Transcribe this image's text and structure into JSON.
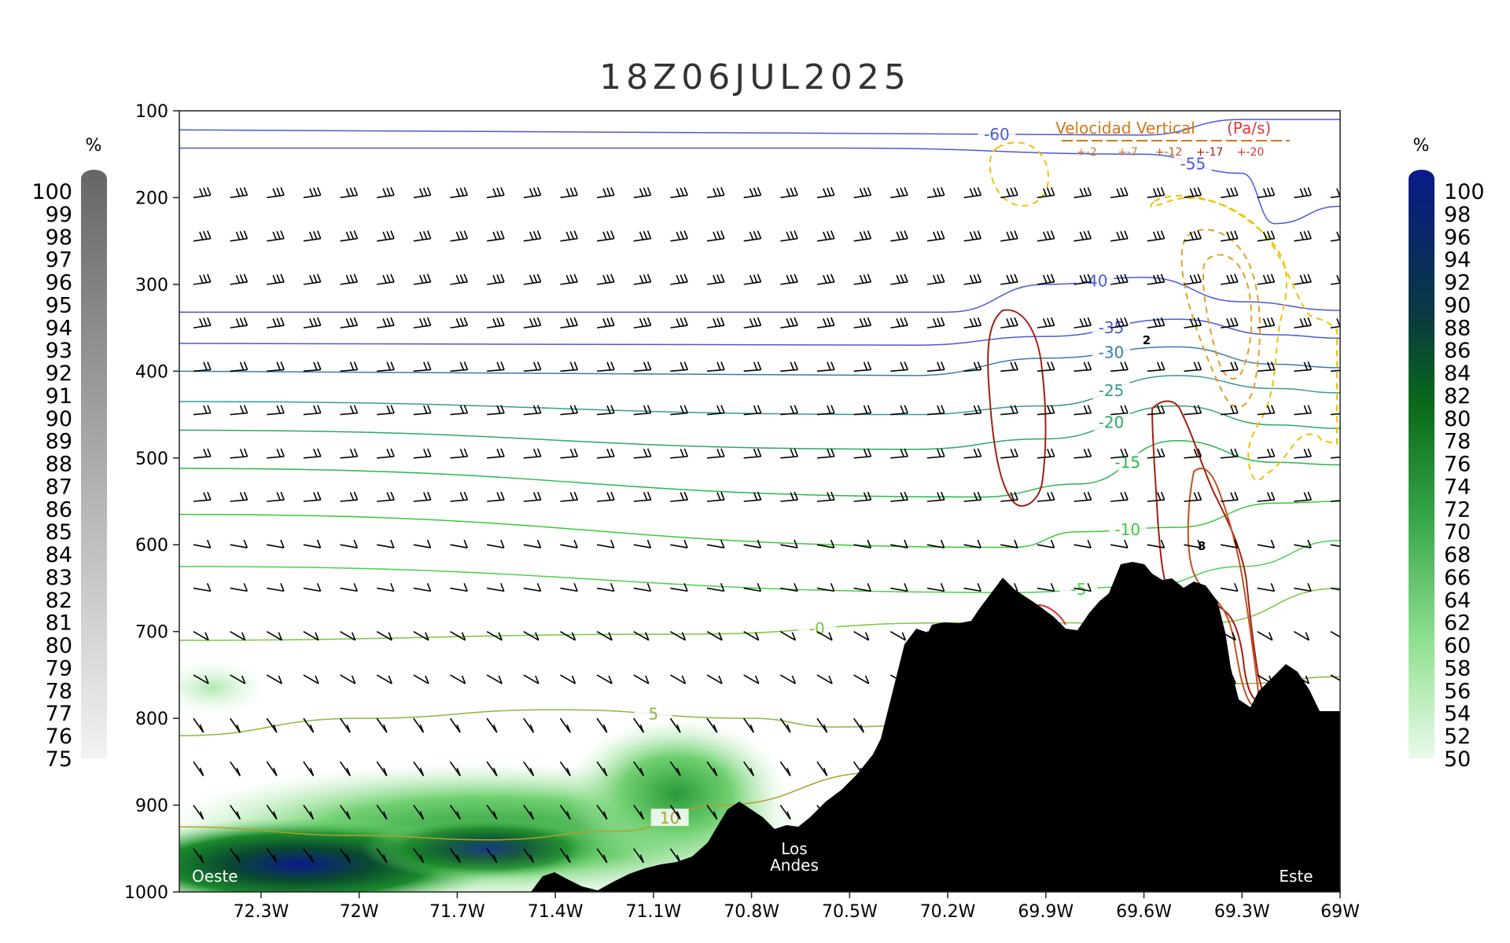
{
  "chart_data": {
    "type": "heatmap",
    "title": "18Z06JUL2025",
    "x_axis": {
      "ticks": [
        "72.3W",
        "72W",
        "71.7W",
        "71.4W",
        "71.1W",
        "70.8W",
        "70.5W",
        "70.2W",
        "69.9W",
        "69.6W",
        "69.3W",
        "69W"
      ],
      "tick_values": [
        -72.3,
        -72.0,
        -71.7,
        -71.4,
        -71.1,
        -70.8,
        -70.5,
        -70.2,
        -69.9,
        -69.6,
        -69.3,
        -69.0
      ],
      "range": [
        -72.55,
        -69.0
      ]
    },
    "y_axis": {
      "ticks": [
        "100",
        "200",
        "300",
        "400",
        "500",
        "600",
        "700",
        "800",
        "900",
        "1000"
      ],
      "tick_values": [
        100,
        200,
        300,
        400,
        500,
        600,
        700,
        800,
        900,
        1000
      ],
      "range": [
        1000,
        100
      ],
      "inverted": true
    },
    "left_colorbar": {
      "unit": "%",
      "labels": [
        "100",
        "99",
        "98",
        "97",
        "96",
        "95",
        "94",
        "93",
        "92",
        "91",
        "90",
        "89",
        "88",
        "87",
        "86",
        "85",
        "84",
        "83",
        "82",
        "81",
        "80",
        "79",
        "78",
        "77",
        "76",
        "75"
      ],
      "color_top": "#666666",
      "color_bottom": "#f2f2f2"
    },
    "right_colorbar": {
      "unit": "%",
      "labels": [
        "100",
        "98",
        "96",
        "94",
        "92",
        "90",
        "88",
        "86",
        "84",
        "82",
        "80",
        "78",
        "76",
        "74",
        "72",
        "70",
        "68",
        "66",
        "64",
        "62",
        "60",
        "58",
        "56",
        "54",
        "52",
        "50"
      ],
      "color_top": "#0a1a8a",
      "color_bottom": "#eafaea"
    },
    "legend": {
      "title_part1": "Velocidad Vertical",
      "title_part2": "(Pa/s)",
      "items": [
        "+-2",
        "+-7",
        "+-12",
        "+-17",
        "+-20"
      ],
      "placement": "top-right"
    },
    "temperature_contours": [
      {
        "label": "-60",
        "points": [
          [
            -72.55,
            122
          ],
          [
            -70.5,
            126
          ],
          [
            -69.6,
            128
          ],
          [
            -69.3,
            110
          ],
          [
            -69.0,
            110
          ]
        ],
        "color": "#4a5ad8"
      },
      {
        "label": "-55",
        "points": [
          [
            -72.55,
            143
          ],
          [
            -70.5,
            143
          ],
          [
            -69.6,
            150
          ],
          [
            -69.3,
            172
          ],
          [
            -69.2,
            230
          ],
          [
            -69.0,
            210
          ]
        ],
        "color": "#4a5ad8"
      },
      {
        "label": "-40",
        "points": [
          [
            -72.55,
            332
          ],
          [
            -70.2,
            332
          ],
          [
            -69.9,
            300
          ],
          [
            -69.6,
            292
          ],
          [
            -69.3,
            320
          ],
          [
            -69.0,
            330
          ]
        ],
        "color": "#4a5ad8"
      },
      {
        "label": "-35",
        "points": [
          [
            -72.55,
            368
          ],
          [
            -70.3,
            370
          ],
          [
            -69.9,
            360
          ],
          [
            -69.5,
            340
          ],
          [
            -69.2,
            358
          ],
          [
            -69.0,
            362
          ]
        ],
        "color": "#4a5ad8"
      },
      {
        "label": "-30",
        "points": [
          [
            -72.55,
            400
          ],
          [
            -70.3,
            405
          ],
          [
            -69.9,
            385
          ],
          [
            -69.5,
            372
          ],
          [
            -69.2,
            392
          ],
          [
            -69.0,
            396
          ]
        ],
        "color": "#3a7ab0"
      },
      {
        "label": "-25",
        "points": [
          [
            -72.55,
            435
          ],
          [
            -70.3,
            450
          ],
          [
            -69.9,
            440
          ],
          [
            -69.5,
            405
          ],
          [
            -69.2,
            420
          ],
          [
            -69.0,
            425
          ]
        ],
        "color": "#3a9a90"
      },
      {
        "label": "-20",
        "points": [
          [
            -72.55,
            468
          ],
          [
            -70.3,
            490
          ],
          [
            -69.9,
            478
          ],
          [
            -69.5,
            440
          ],
          [
            -69.2,
            462
          ],
          [
            -69.0,
            466
          ]
        ],
        "color": "#2aa86a"
      },
      {
        "label": "-15",
        "points": [
          [
            -72.55,
            512
          ],
          [
            -70.1,
            545
          ],
          [
            -69.8,
            530
          ],
          [
            -69.5,
            480
          ],
          [
            -69.2,
            505
          ],
          [
            -69.0,
            508
          ]
        ],
        "color": "#2ab84a"
      },
      {
        "label": "-10",
        "points": [
          [
            -72.55,
            565
          ],
          [
            -70.0,
            603
          ],
          [
            -69.8,
            585
          ],
          [
            -69.5,
            580
          ],
          [
            -69.2,
            552
          ],
          [
            -69.0,
            550
          ]
        ],
        "color": "#3ac83a"
      },
      {
        "label": "-5",
        "points": [
          [
            -72.55,
            625
          ],
          [
            -70.0,
            655
          ],
          [
            -69.6,
            648
          ],
          [
            -69.3,
            625
          ],
          [
            -69.0,
            595
          ]
        ],
        "color": "#4ad04a"
      },
      {
        "label": "-0",
        "points": [
          [
            -72.55,
            710
          ],
          [
            -71.0,
            703
          ],
          [
            -70.2,
            690
          ],
          [
            -69.4,
            690
          ],
          [
            -69.0,
            650
          ]
        ],
        "color": "#7ac83a"
      },
      {
        "label": "5",
        "points": [
          [
            -72.55,
            820
          ],
          [
            -72.0,
            800
          ],
          [
            -71.4,
            790
          ],
          [
            -70.8,
            800
          ],
          [
            -70.55,
            810
          ],
          [
            -69.3,
            760
          ],
          [
            -69.0,
            752
          ]
        ],
        "color": "#8ab83a"
      },
      {
        "label": "10",
        "points": [
          [
            -72.55,
            925
          ],
          [
            -72.0,
            935
          ],
          [
            -71.6,
            940
          ],
          [
            -71.2,
            930
          ],
          [
            -70.9,
            900
          ],
          [
            -70.4,
            862
          ],
          [
            -69.3,
            815
          ],
          [
            -69.0,
            808
          ]
        ],
        "color": "#b0a030"
      }
    ],
    "vertical_velocity_contours": [
      {
        "level": "+-2",
        "style": "dashed",
        "color": "#f0c000"
      },
      {
        "level": "+-7",
        "style": "dashed",
        "color": "#e0a020"
      },
      {
        "level": "+-12",
        "style": "solid",
        "color": "#c05020"
      },
      {
        "level": "+-17",
        "style": "solid",
        "color": "#a02010"
      },
      {
        "level": "+-20",
        "style": "solid",
        "color": "#e03030"
      }
    ],
    "vv_labels": [
      "2",
      "8"
    ],
    "terrain_labels": {
      "west": "Oeste",
      "andes_line1": "Los",
      "andes_line2": "Andes",
      "east": "Este"
    },
    "wind_barbs": "present"
  }
}
